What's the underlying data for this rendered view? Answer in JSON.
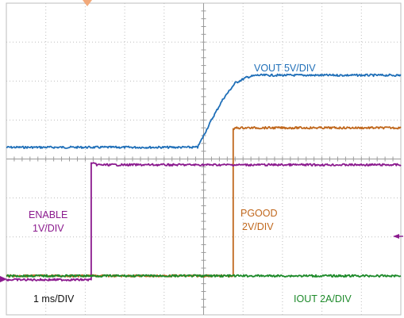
{
  "chart_data": {
    "type": "line",
    "title": "",
    "xlabel": "",
    "ylabel": "",
    "grid": true,
    "grid_divisions": {
      "x": 10,
      "y": 8
    },
    "time_scale_label": "1 ms/DIV",
    "x_unit": "ms",
    "x_range_ms": [
      0,
      10
    ],
    "y_range_div": [
      -4,
      4
    ],
    "series": [
      {
        "name": "VOUT 5V/DIV",
        "color": "#1f6fb8",
        "scale_label": "VOUT 5V/DIV",
        "x_ms": [
          0,
          4.85,
          5.0,
          5.2,
          5.5,
          5.8,
          6.1,
          6.35,
          10
        ],
        "y_div": [
          0.3,
          0.3,
          0.6,
          1.0,
          1.55,
          1.95,
          2.1,
          2.15,
          2.15
        ]
      },
      {
        "name": "PGOOD 2V/DIV",
        "color": "#c0671c",
        "scale_label": "PGOOD 2V/DIV",
        "x_ms": [
          0,
          5.75,
          5.75,
          5.82,
          10
        ],
        "y_div": [
          -3.0,
          -3.0,
          0.75,
          0.8,
          0.8
        ]
      },
      {
        "name": "ENABLE 1V/DIV",
        "color": "#8b1a8e",
        "scale_label": "ENABLE 1V/DIV",
        "x_ms": [
          0,
          2.15,
          2.15,
          2.3,
          10
        ],
        "y_div": [
          -3.1,
          -3.1,
          -0.1,
          -0.15,
          -0.15
        ]
      },
      {
        "name": "IOUT 2A/DIV",
        "color": "#1d8a2a",
        "scale_label": "IOUT 2A/DIV",
        "x_ms": [
          0,
          10
        ],
        "y_div": [
          -3.0,
          -3.0
        ]
      }
    ]
  },
  "labels": {
    "vout": "VOUT 5V/DIV",
    "pgood_1": "PGOOD",
    "pgood_2": "2V/DIV",
    "enable_1": "ENABLE",
    "enable_2": "1V/DIV",
    "time": "1 ms/DIV",
    "iout": "IOUT 2A/DIV"
  }
}
